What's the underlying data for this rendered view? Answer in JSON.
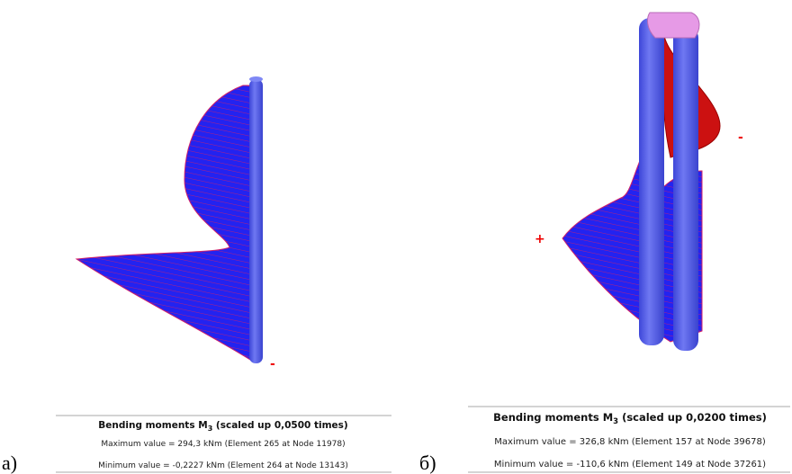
{
  "panels": [
    {
      "label": "a)",
      "signs": [
        "-"
      ],
      "caption": {
        "title": "Bending moments M",
        "subscript": "3",
        "title_suffix": " (scaled up 0,0500 times)",
        "max_line": "Maximum value = 294,3 kNm (Element 265 at Node 11978)",
        "min_line": "Minimum value = -0,2227 kNm (Element 264 at Node 13143)"
      }
    },
    {
      "label": "б)",
      "signs": [
        "+",
        "-"
      ],
      "caption": {
        "title": "Bending moments M",
        "subscript": "3",
        "title_suffix": " (scaled up 0,0200 times)",
        "max_line": "Maximum value = 326,8 kNm (Element 157 at Node 39678)",
        "min_line": "Minimum value = -110,6 kNm (Element 149 at Node 37261)"
      }
    }
  ]
}
